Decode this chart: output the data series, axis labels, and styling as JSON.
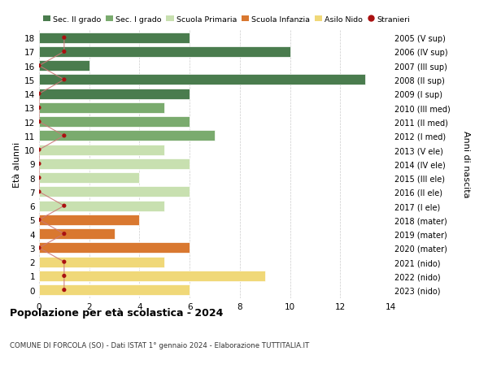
{
  "ages": [
    18,
    17,
    16,
    15,
    14,
    13,
    12,
    11,
    10,
    9,
    8,
    7,
    6,
    5,
    4,
    3,
    2,
    1,
    0
  ],
  "years": [
    "2005 (V sup)",
    "2006 (IV sup)",
    "2007 (III sup)",
    "2008 (II sup)",
    "2009 (I sup)",
    "2010 (III med)",
    "2011 (II med)",
    "2012 (I med)",
    "2013 (V ele)",
    "2014 (IV ele)",
    "2015 (III ele)",
    "2016 (II ele)",
    "2017 (I ele)",
    "2018 (mater)",
    "2019 (mater)",
    "2020 (mater)",
    "2021 (nido)",
    "2022 (nido)",
    "2023 (nido)"
  ],
  "bar_values": [
    6,
    10,
    2,
    13,
    6,
    5,
    6,
    7,
    5,
    6,
    4,
    6,
    5,
    4,
    3,
    6,
    5,
    9,
    6
  ],
  "bar_colors": [
    "#4a7c4e",
    "#4a7c4e",
    "#4a7c4e",
    "#4a7c4e",
    "#4a7c4e",
    "#7aab6e",
    "#7aab6e",
    "#7aab6e",
    "#c8e0b0",
    "#c8e0b0",
    "#c8e0b0",
    "#c8e0b0",
    "#c8e0b0",
    "#d97830",
    "#d97830",
    "#d97830",
    "#f0d878",
    "#f0d878",
    "#f0d878"
  ],
  "stranieri": [
    1,
    1,
    0,
    1,
    0,
    0,
    0,
    1,
    0,
    0,
    0,
    0,
    1,
    0,
    1,
    0,
    1,
    1,
    1
  ],
  "title": "Popolazione per età scolastica - 2024",
  "subtitle": "COMUNE DI FORCOLA (SO) - Dati ISTAT 1° gennaio 2024 - Elaborazione TUTTITALIA.IT",
  "ylabel_left": "Età alunni",
  "ylabel_right": "Anni di nascita",
  "xlim": [
    0,
    14
  ],
  "background_color": "#ffffff",
  "grid_color": "#cccccc",
  "legend_labels": [
    "Sec. II grado",
    "Sec. I grado",
    "Scuola Primaria",
    "Scuola Infanzia",
    "Asilo Nido",
    "Stranieri"
  ],
  "legend_colors": [
    "#4a7c4e",
    "#7aab6e",
    "#c8e0b0",
    "#d97830",
    "#f0d878",
    "#cc2222"
  ],
  "stranieri_color": "#aa1111",
  "stranieri_line_color": "#cc7777"
}
